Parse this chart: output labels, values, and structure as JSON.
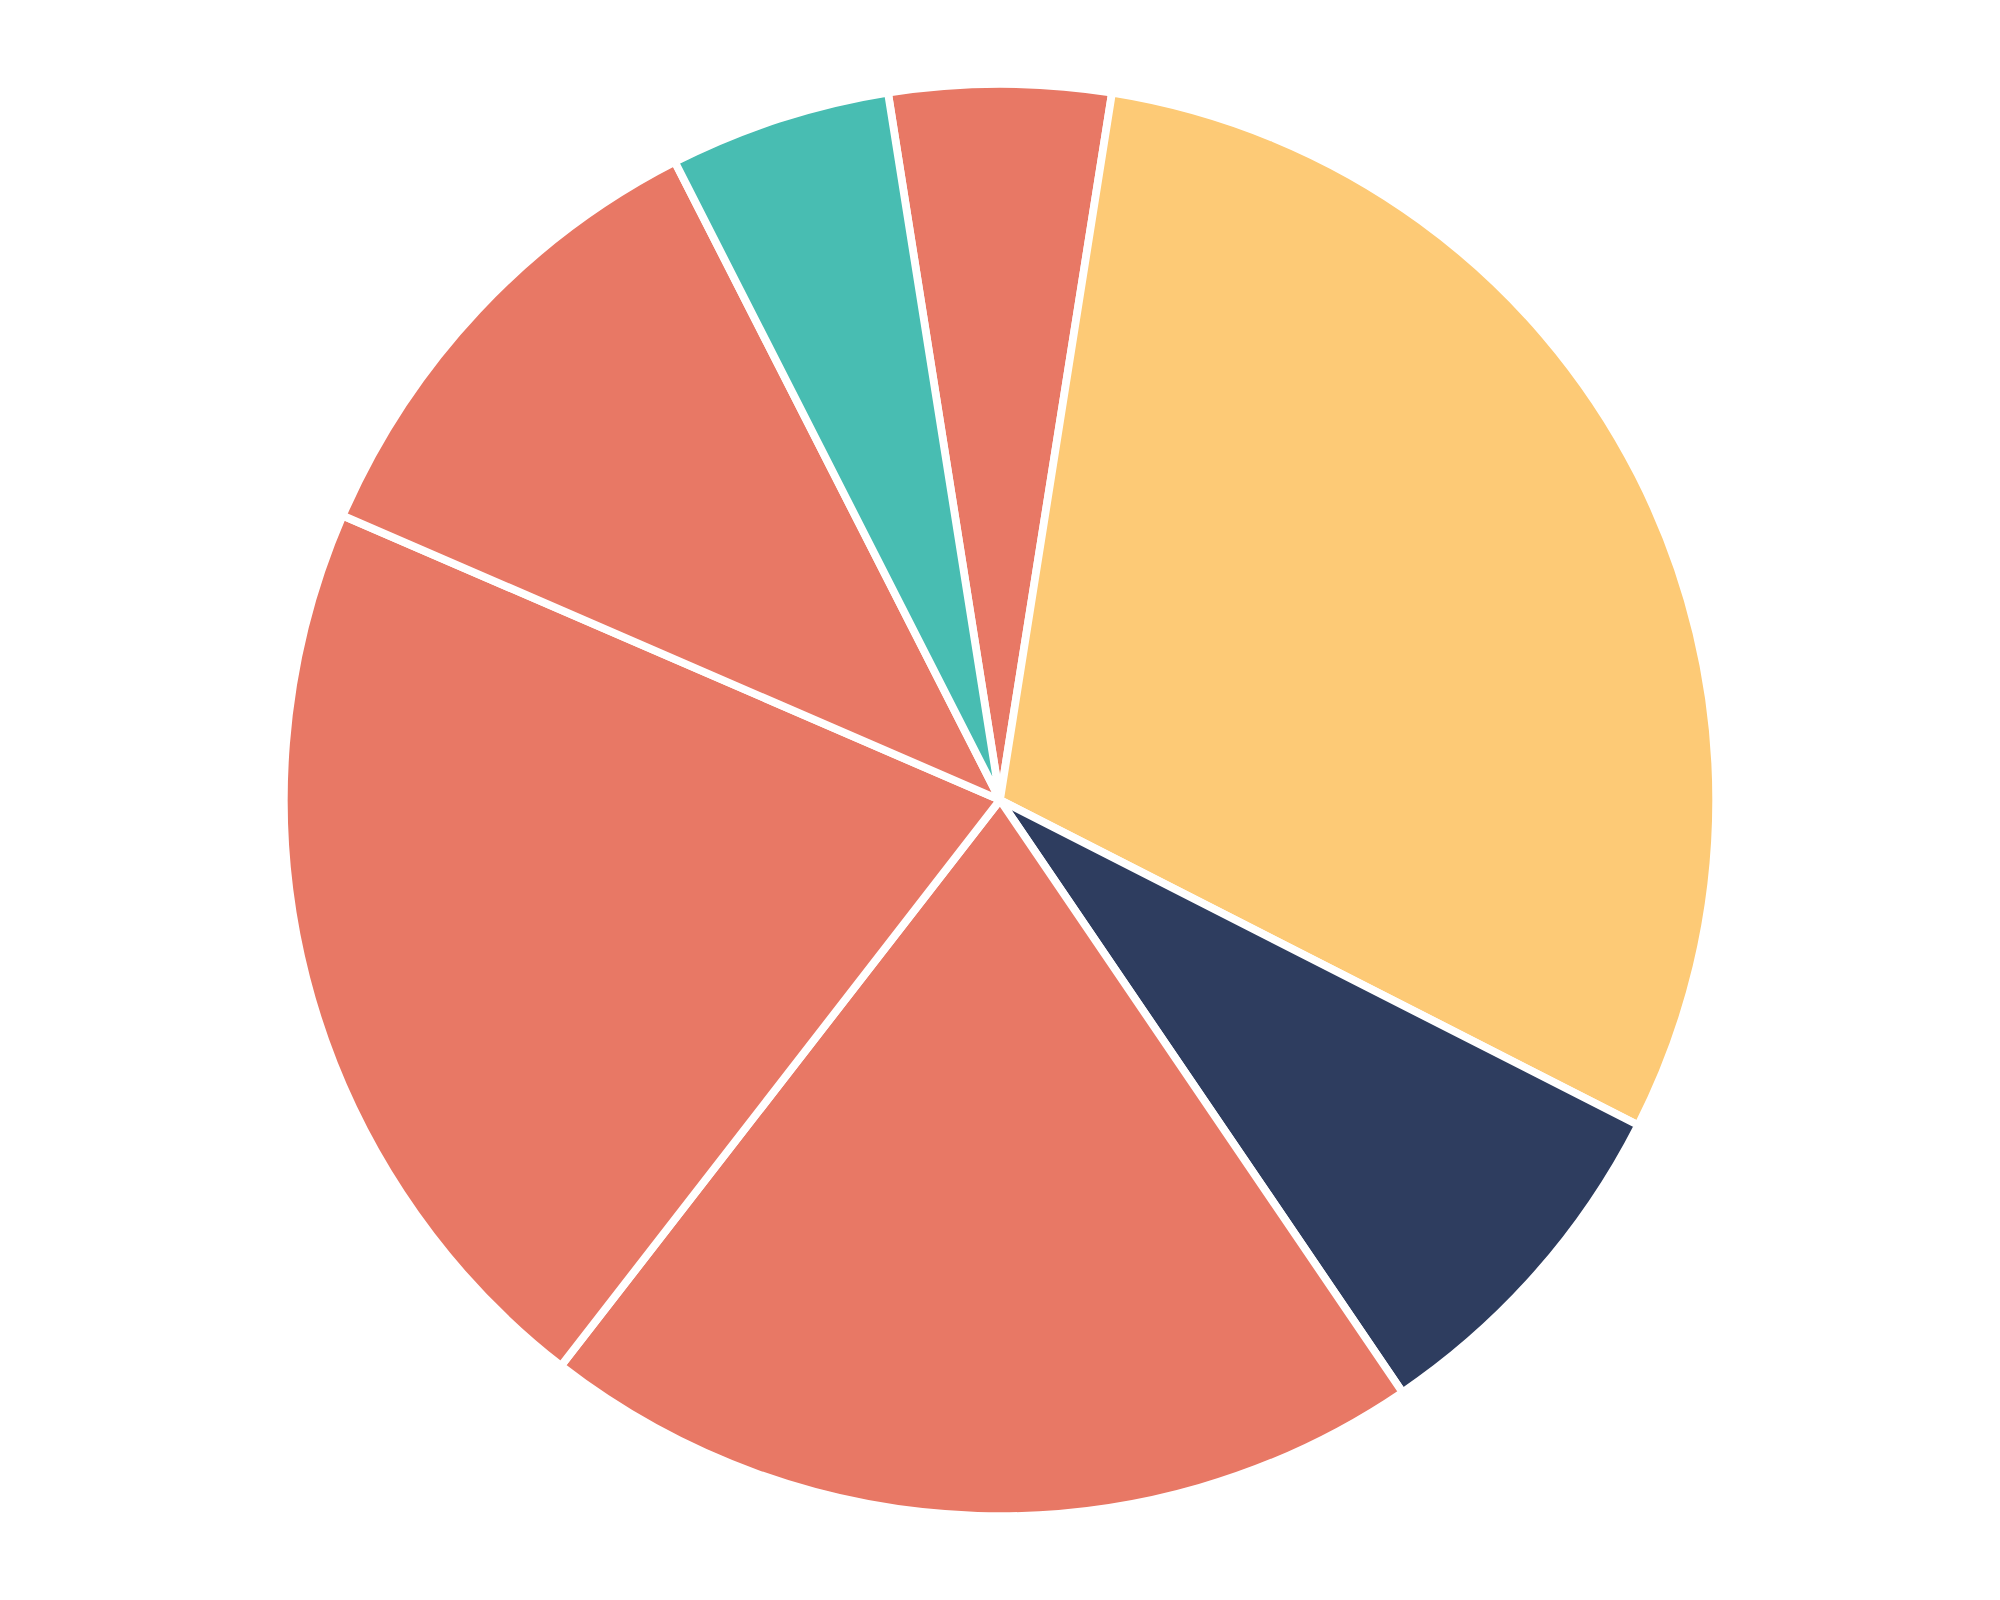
{
  "chart_data": {
    "type": "pie",
    "categories": [
      null,
      null,
      null,
      null,
      null,
      null,
      null
    ],
    "values": [
      5,
      30,
      8,
      20,
      21,
      11,
      5
    ],
    "colors": [
      "#e87865",
      "#fdca76",
      "#2e3d5f",
      "#e87865",
      "#e87865",
      "#e87865",
      "#48bdb2"
    ]
  }
}
